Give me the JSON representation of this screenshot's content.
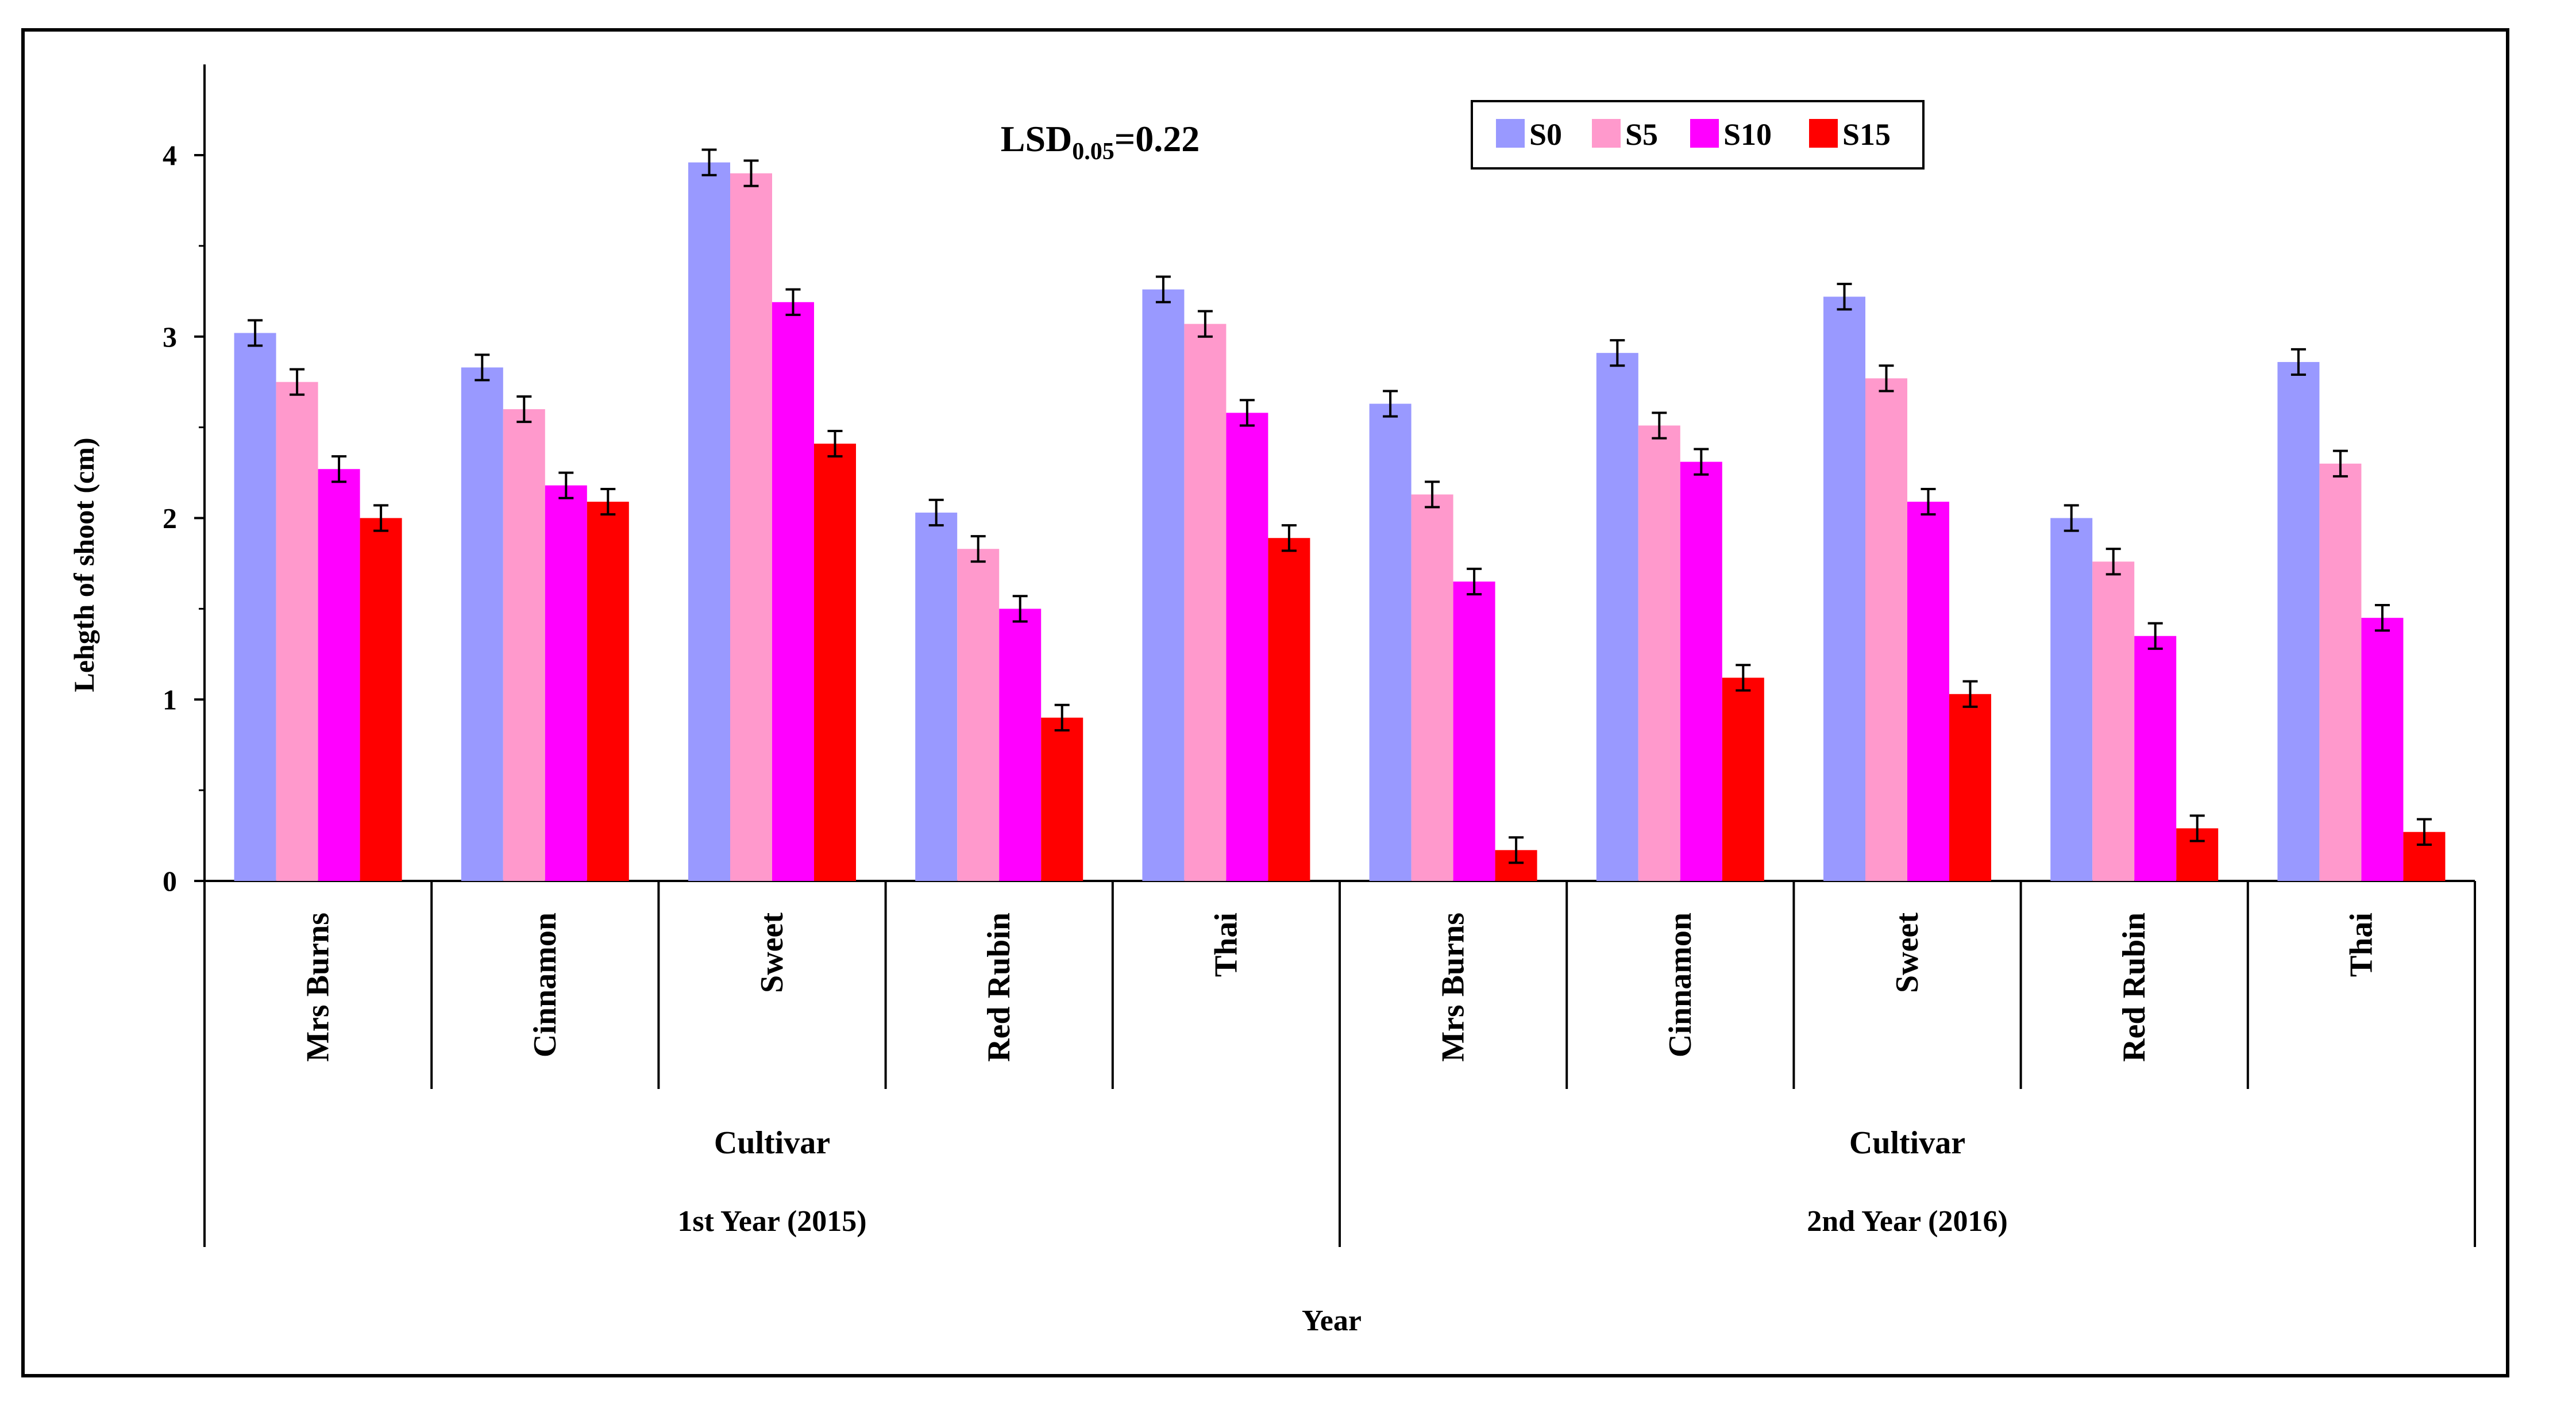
{
  "chart_data": {
    "type": "bar",
    "title": "",
    "annotation": {
      "prefix": "LSD",
      "subscript": "0.05",
      "suffix": "=0.22"
    },
    "ylabel": "Lehgth of shoot (cm)",
    "xlabel": "Year",
    "ylim": [
      0,
      4.5
    ],
    "yticks": [
      "0",
      "1",
      "2",
      "3",
      "4"
    ],
    "grid": false,
    "legend_position": "top-right",
    "error_bar": 0.07,
    "groups": [
      {
        "label": "1st Year (2015)",
        "sublabel": "Cultivar",
        "categories": [
          "Mrs Burns",
          "Cinnamon",
          "Sweet",
          "Red Rubin",
          "Thai"
        ]
      },
      {
        "label": "2nd Year (2016)",
        "sublabel": "Cultivar",
        "categories": [
          "Mrs Burns",
          "Cinnamon",
          "Sweet",
          "Red Rubin",
          "Thai"
        ]
      }
    ],
    "series": [
      {
        "name": "S0",
        "color": "#9999ff",
        "values": [
          3.02,
          2.83,
          3.96,
          2.03,
          3.26,
          2.63,
          2.91,
          3.22,
          2.0,
          2.86
        ]
      },
      {
        "name": "S5",
        "color": "#ff99cc",
        "values": [
          2.75,
          2.6,
          3.9,
          1.83,
          3.07,
          2.13,
          2.51,
          2.77,
          1.76,
          2.3
        ]
      },
      {
        "name": "S10",
        "color": "#ff00ff",
        "values": [
          2.27,
          2.18,
          3.19,
          1.5,
          2.58,
          1.65,
          2.31,
          2.09,
          1.35,
          1.45
        ]
      },
      {
        "name": "S15",
        "color": "#ff0000",
        "values": [
          2.0,
          2.09,
          2.41,
          0.9,
          1.89,
          0.17,
          1.12,
          1.03,
          0.29,
          0.27
        ]
      }
    ]
  }
}
